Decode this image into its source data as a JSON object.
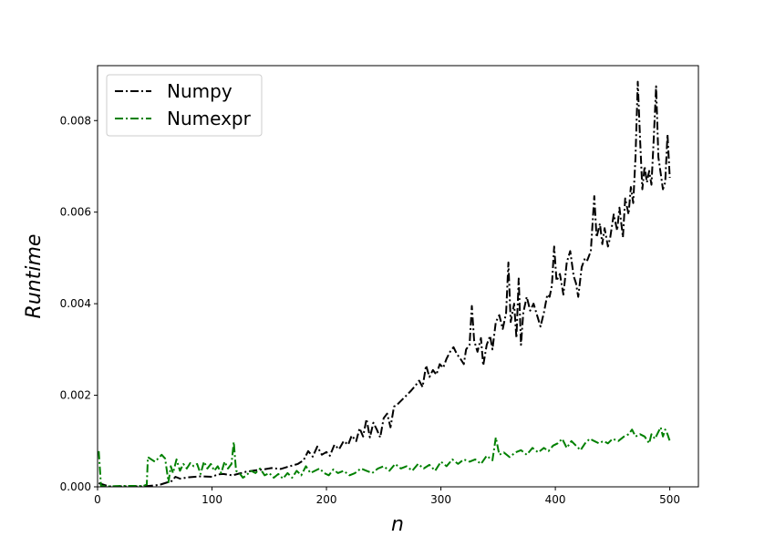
{
  "chart_data": {
    "type": "line",
    "title": "",
    "xlabel": "n",
    "ylabel": "Runtime",
    "xlim": [
      0,
      525
    ],
    "ylim": [
      0,
      0.0092
    ],
    "xticks": [
      0,
      100,
      200,
      300,
      400,
      500
    ],
    "xtick_labels": [
      "0",
      "100",
      "200",
      "300",
      "400",
      "500"
    ],
    "yticks": [
      0,
      0.002,
      0.004,
      0.006,
      0.008
    ],
    "ytick_labels": [
      "0.000",
      "0.002",
      "0.004",
      "0.006",
      "0.008"
    ],
    "grid": false,
    "legend_position": "top-left",
    "line_style": "dash-dot",
    "series": [
      {
        "name": "Numpy",
        "color": "#000000",
        "points": [
          [
            1,
            8e-05
          ],
          [
            10,
            1e-05
          ],
          [
            20,
            1e-05
          ],
          [
            30,
            1e-05
          ],
          [
            40,
            1e-05
          ],
          [
            50,
            3e-05
          ],
          [
            55,
            5e-05
          ],
          [
            60,
            9e-05
          ],
          [
            65,
            0.00013
          ],
          [
            68,
            0.00022
          ],
          [
            72,
            0.00018
          ],
          [
            80,
            0.00021
          ],
          [
            90,
            0.00023
          ],
          [
            100,
            0.00022
          ],
          [
            105,
            0.00027
          ],
          [
            110,
            0.00028
          ],
          [
            118,
            0.00025
          ],
          [
            124,
            0.00029
          ],
          [
            130,
            0.00033
          ],
          [
            138,
            0.00036
          ],
          [
            145,
            0.00038
          ],
          [
            152,
            0.00041
          ],
          [
            160,
            0.00039
          ],
          [
            168,
            0.00045
          ],
          [
            175,
            0.0005
          ],
          [
            180,
            0.00058
          ],
          [
            184,
            0.00078
          ],
          [
            188,
            0.00066
          ],
          [
            192,
            0.00088
          ],
          [
            196,
            0.0007
          ],
          [
            200,
            0.00076
          ],
          [
            203,
            0.00068
          ],
          [
            207,
            0.00092
          ],
          [
            211,
            0.00082
          ],
          [
            215,
            0.001
          ],
          [
            219,
            0.00092
          ],
          [
            222,
            0.00112
          ],
          [
            226,
            0.001
          ],
          [
            229,
            0.00128
          ],
          [
            232,
            0.0011
          ],
          [
            235,
            0.00148
          ],
          [
            238,
            0.00108
          ],
          [
            241,
            0.0014
          ],
          [
            244,
            0.00125
          ],
          [
            247,
            0.00108
          ],
          [
            250,
            0.0015
          ],
          [
            253,
            0.0016
          ],
          [
            256,
            0.0013
          ],
          [
            259,
            0.00175
          ],
          [
            262,
            0.0018
          ],
          [
            266,
            0.0019
          ],
          [
            270,
            0.002
          ],
          [
            274,
            0.0021
          ],
          [
            278,
            0.00222
          ],
          [
            281,
            0.00232
          ],
          [
            284,
            0.00218
          ],
          [
            287,
            0.00265
          ],
          [
            290,
            0.0024
          ],
          [
            293,
            0.00255
          ],
          [
            296,
            0.00245
          ],
          [
            299,
            0.00268
          ],
          [
            302,
            0.0026
          ],
          [
            305,
            0.0028
          ],
          [
            308,
            0.00295
          ],
          [
            311,
            0.00305
          ],
          [
            314,
            0.0029
          ],
          [
            317,
            0.0028
          ],
          [
            320,
            0.00268
          ],
          [
            322,
            0.003
          ],
          [
            325,
            0.0031
          ],
          [
            327,
            0.00395
          ],
          [
            329,
            0.0032
          ],
          [
            332,
            0.00295
          ],
          [
            335,
            0.00325
          ],
          [
            337,
            0.00265
          ],
          [
            340,
            0.0031
          ],
          [
            343,
            0.0033
          ],
          [
            345,
            0.003
          ],
          [
            348,
            0.0036
          ],
          [
            351,
            0.00375
          ],
          [
            354,
            0.00345
          ],
          [
            357,
            0.0038
          ],
          [
            359,
            0.0049
          ],
          [
            361,
            0.0036
          ],
          [
            364,
            0.004
          ],
          [
            366,
            0.00325
          ],
          [
            368,
            0.00455
          ],
          [
            370,
            0.0031
          ],
          [
            372,
            0.0038
          ],
          [
            375,
            0.00415
          ],
          [
            378,
            0.00385
          ],
          [
            381,
            0.004
          ],
          [
            384,
            0.00375
          ],
          [
            387,
            0.0035
          ],
          [
            390,
            0.0038
          ],
          [
            393,
            0.0042
          ],
          [
            395,
            0.00415
          ],
          [
            397,
            0.0044
          ],
          [
            399,
            0.00525
          ],
          [
            401,
            0.0045
          ],
          [
            404,
            0.00465
          ],
          [
            407,
            0.0042
          ],
          [
            410,
            0.0049
          ],
          [
            413,
            0.00515
          ],
          [
            416,
            0.0046
          ],
          [
            418,
            0.00445
          ],
          [
            420,
            0.00415
          ],
          [
            423,
            0.0048
          ],
          [
            426,
            0.005
          ],
          [
            428,
            0.00495
          ],
          [
            431,
            0.00515
          ],
          [
            434,
            0.00635
          ],
          [
            436,
            0.00545
          ],
          [
            439,
            0.00575
          ],
          [
            441,
            0.0053
          ],
          [
            443,
            0.00565
          ],
          [
            446,
            0.00525
          ],
          [
            448,
            0.00545
          ],
          [
            451,
            0.00595
          ],
          [
            454,
            0.0056
          ],
          [
            456,
            0.0061
          ],
          [
            459,
            0.00545
          ],
          [
            461,
            0.0063
          ],
          [
            464,
            0.00595
          ],
          [
            466,
            0.00655
          ],
          [
            468,
            0.0062
          ],
          [
            470,
            0.0072
          ],
          [
            472,
            0.00885
          ],
          [
            474,
            0.0076
          ],
          [
            476,
            0.0065
          ],
          [
            478,
            0.007
          ],
          [
            480,
            0.00665
          ],
          [
            482,
            0.0069
          ],
          [
            484,
            0.0066
          ],
          [
            486,
            0.0076
          ],
          [
            488,
            0.00875
          ],
          [
            490,
            0.0072
          ],
          [
            492,
            0.00685
          ],
          [
            494,
            0.0065
          ],
          [
            496,
            0.00665
          ],
          [
            498,
            0.0077
          ],
          [
            499,
            0.0072
          ],
          [
            500,
            0.00675
          ]
        ]
      },
      {
        "name": "Numexpr",
        "color": "#008000",
        "points": [
          [
            1,
            0.00078
          ],
          [
            3,
            2e-05
          ],
          [
            10,
            1e-05
          ],
          [
            20,
            2e-05
          ],
          [
            30,
            2e-05
          ],
          [
            40,
            2e-05
          ],
          [
            43,
            5e-05
          ],
          [
            44,
            0.00065
          ],
          [
            47,
            0.0006
          ],
          [
            50,
            0.00055
          ],
          [
            53,
            0.00062
          ],
          [
            56,
            0.0007
          ],
          [
            59,
            0.00062
          ],
          [
            62,
            0.0001
          ],
          [
            64,
            0.00045
          ],
          [
            66,
            0.0003
          ],
          [
            69,
            0.0006
          ],
          [
            72,
            0.00035
          ],
          [
            75,
            0.0005
          ],
          [
            78,
            0.0004
          ],
          [
            81,
            0.00052
          ],
          [
            84,
            0.00045
          ],
          [
            87,
            0.0005
          ],
          [
            90,
            0.00028
          ],
          [
            93,
            0.00055
          ],
          [
            96,
            0.0004
          ],
          [
            99,
            0.0005
          ],
          [
            102,
            0.00035
          ],
          [
            105,
            0.00045
          ],
          [
            108,
            0.0003
          ],
          [
            111,
            0.00055
          ],
          [
            114,
            0.0004
          ],
          [
            117,
            0.0005
          ],
          [
            119,
            0.00098
          ],
          [
            121,
            0.00035
          ],
          [
            124,
            0.0003
          ],
          [
            127,
            0.0002
          ],
          [
            130,
            0.00025
          ],
          [
            134,
            0.00035
          ],
          [
            138,
            0.0003
          ],
          [
            142,
            0.0004
          ],
          [
            146,
            0.00025
          ],
          [
            150,
            0.0003
          ],
          [
            154,
            0.0002
          ],
          [
            158,
            0.00028
          ],
          [
            162,
            0.00018
          ],
          [
            166,
            0.0003
          ],
          [
            170,
            0.0002
          ],
          [
            174,
            0.00035
          ],
          [
            178,
            0.00025
          ],
          [
            182,
            0.00045
          ],
          [
            186,
            0.0003
          ],
          [
            190,
            0.00035
          ],
          [
            194,
            0.0004
          ],
          [
            198,
            0.0003
          ],
          [
            202,
            0.00025
          ],
          [
            206,
            0.00038
          ],
          [
            210,
            0.0003
          ],
          [
            215,
            0.00035
          ],
          [
            220,
            0.00025
          ],
          [
            225,
            0.0003
          ],
          [
            230,
            0.0004
          ],
          [
            235,
            0.00035
          ],
          [
            240,
            0.0003
          ],
          [
            245,
            0.0004
          ],
          [
            250,
            0.00045
          ],
          [
            255,
            0.00035
          ],
          [
            260,
            0.0005
          ],
          [
            265,
            0.0004
          ],
          [
            270,
            0.00045
          ],
          [
            275,
            0.00035
          ],
          [
            280,
            0.0005
          ],
          [
            285,
            0.0004
          ],
          [
            290,
            0.00048
          ],
          [
            295,
            0.00035
          ],
          [
            300,
            0.00055
          ],
          [
            305,
            0.00045
          ],
          [
            310,
            0.0006
          ],
          [
            315,
            0.0005
          ],
          [
            320,
            0.0006
          ],
          [
            325,
            0.00055
          ],
          [
            330,
            0.0006
          ],
          [
            335,
            0.0005
          ],
          [
            340,
            0.00068
          ],
          [
            345,
            0.00058
          ],
          [
            348,
            0.00108
          ],
          [
            351,
            0.0007
          ],
          [
            355,
            0.00075
          ],
          [
            360,
            0.00065
          ],
          [
            365,
            0.00075
          ],
          [
            370,
            0.0008
          ],
          [
            375,
            0.0007
          ],
          [
            380,
            0.00085
          ],
          [
            385,
            0.00075
          ],
          [
            390,
            0.00085
          ],
          [
            394,
            0.00078
          ],
          [
            398,
            0.0009
          ],
          [
            402,
            0.00095
          ],
          [
            406,
            0.00105
          ],
          [
            410,
            0.00085
          ],
          [
            414,
            0.001
          ],
          [
            418,
            0.0009
          ],
          [
            422,
            0.0008
          ],
          [
            426,
            0.00095
          ],
          [
            430,
            0.00105
          ],
          [
            434,
            0.001
          ],
          [
            438,
            0.00095
          ],
          [
            442,
            0.001
          ],
          [
            446,
            0.00095
          ],
          [
            450,
            0.00105
          ],
          [
            455,
            0.001
          ],
          [
            460,
            0.0011
          ],
          [
            464,
            0.00115
          ],
          [
            467,
            0.00125
          ],
          [
            470,
            0.0011
          ],
          [
            474,
            0.00115
          ],
          [
            478,
            0.0011
          ],
          [
            482,
            0.00095
          ],
          [
            484,
            0.00115
          ],
          [
            487,
            0.00105
          ],
          [
            490,
            0.0012
          ],
          [
            492,
            0.0013
          ],
          [
            494,
            0.0011
          ],
          [
            496,
            0.00125
          ],
          [
            498,
            0.00115
          ],
          [
            500,
            0.001
          ]
        ]
      }
    ]
  }
}
